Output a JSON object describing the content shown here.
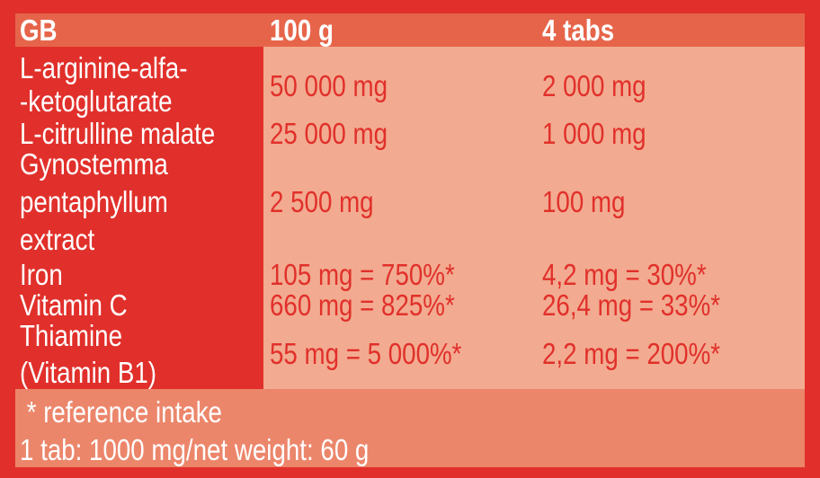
{
  "header": {
    "label": "GB",
    "col1": "100 g",
    "col2": "4 tabs"
  },
  "rows": [
    {
      "name_lines": [
        "L-arginine-alfa-",
        "-ketoglutarate"
      ],
      "per100g": "50 000 mg",
      "per4tabs": "2 000 mg"
    },
    {
      "name_lines": [
        "L-citrulline malate"
      ],
      "per100g": "25 000 mg",
      "per4tabs": "1 000 mg"
    },
    {
      "name_lines": [
        "Gynostemma",
        "pentaphyllum",
        "extract"
      ],
      "per100g": "2 500 mg",
      "per4tabs": "100 mg"
    },
    {
      "name_lines": [
        "Iron"
      ],
      "per100g": "105 mg = 750%*",
      "per4tabs": "4,2 mg = 30%*"
    },
    {
      "name_lines": [
        "Vitamin C"
      ],
      "per100g": "660 mg = 825%*",
      "per4tabs": "26,4 mg = 33%*"
    },
    {
      "name_lines": [
        "Thiamine",
        "(Vitamin B1)"
      ],
      "per100g": "55 mg = 5 000%*",
      "per4tabs": "2,2 mg = 200%*"
    }
  ],
  "footer": {
    "note": " * reference intake",
    "info": "1 tab: 1000 mg/net weight: 60 g"
  },
  "colors": {
    "background": "#e1302b",
    "header": "#e6654a",
    "cells": "#f2ab90",
    "footer": "#ec866b"
  }
}
